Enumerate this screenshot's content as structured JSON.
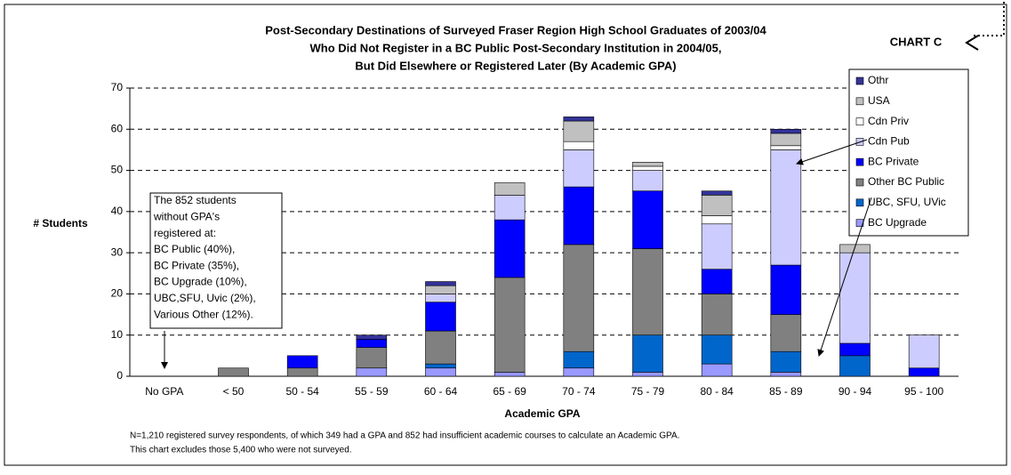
{
  "chart_data": {
    "type": "stacked_bar",
    "title": [
      "Post-Secondary Destinations of Surveyed Fraser Region High School Graduates of 2003/04",
      "Who Did Not Register in a BC Public Post-Secondary Institution in 2004/05,",
      "But Did Elsewhere or Registered Later (By Academic GPA)"
    ],
    "chart_label": "CHART C",
    "x_label": "Academic GPA",
    "y_label": "# Students",
    "categories": [
      "No GPA",
      "< 50",
      "50 - 54",
      "55 - 59",
      "60 - 64",
      "65 - 69",
      "70 - 74",
      "75 - 79",
      "80 - 84",
      "85 - 89",
      "90 - 94",
      "95 - 100"
    ],
    "series": [
      {
        "name": "BC Upgrade",
        "color": "#9999ff",
        "values": [
          0,
          0,
          0,
          2,
          2,
          1,
          2,
          1,
          3,
          1,
          0,
          0
        ]
      },
      {
        "name": "UBC, SFU, UVic",
        "color": "#0066cc",
        "values": [
          0,
          0,
          0,
          0,
          1,
          0,
          4,
          9,
          7,
          5,
          5,
          0
        ]
      },
      {
        "name": "Other BC Public",
        "color": "#808080",
        "values": [
          0,
          2,
          2,
          5,
          8,
          23,
          26,
          21,
          10,
          9,
          0,
          0
        ]
      },
      {
        "name": "BC Private",
        "color": "#0000ff",
        "values": [
          0,
          0,
          3,
          2,
          7,
          14,
          14,
          14,
          6,
          12,
          3,
          2
        ]
      },
      {
        "name": "Cdn Pub",
        "color": "#ccccff",
        "values": [
          0,
          0,
          0,
          0,
          2,
          6,
          9,
          5,
          11,
          28,
          22,
          8
        ]
      },
      {
        "name": "Cdn Priv",
        "color": "#ffffff",
        "values": [
          0,
          0,
          0,
          0,
          0,
          0,
          2,
          1,
          2,
          1,
          0,
          0
        ]
      },
      {
        "name": "USA",
        "color": "#c0c0c0",
        "values": [
          0,
          0,
          0,
          0,
          2,
          3,
          5,
          1,
          5,
          3,
          2,
          0
        ]
      },
      {
        "name": "Othr",
        "color": "#333399",
        "values": [
          0,
          0,
          0,
          1,
          1,
          0,
          1,
          0,
          1,
          1,
          0,
          0
        ]
      }
    ],
    "ylim": [
      0,
      70
    ],
    "yticks": [
      0,
      10,
      20,
      30,
      40,
      50,
      60,
      70
    ],
    "grid": true,
    "annotation": [
      "The 852 students",
      "without GPA's",
      "registered at:",
      "BC Public  (40%),",
      "BC Private (35%),",
      "BC Upgrade (10%),",
      "UBC,SFU, Uvic (2%),",
      "Various Other (12%)."
    ],
    "footnotes": [
      "N=1,210 registered survey respondents, of which 349 had a GPA and 852 had insufficient academic courses to calculate an Academic GPA.",
      "This chart excludes those 5,400 who were not surveyed."
    ]
  }
}
